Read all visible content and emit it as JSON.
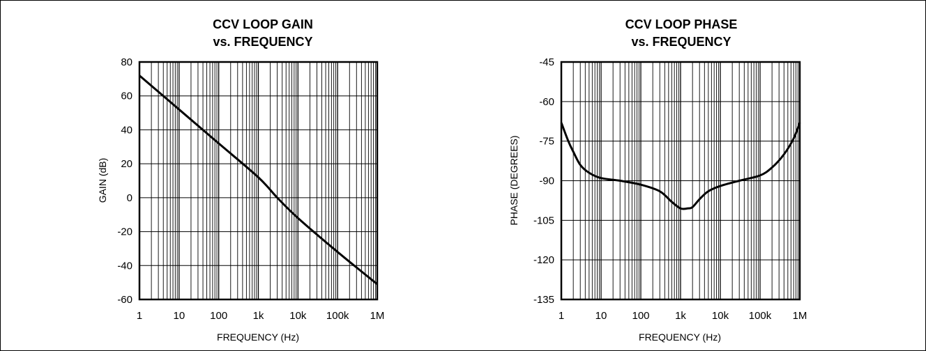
{
  "chart_data": [
    {
      "type": "line",
      "title": "CCV LOOP GAIN",
      "subtitle": "vs. FREQUENCY",
      "xlabel": "FREQUENCY (Hz)",
      "ylabel": "GAIN (dB)",
      "xscale": "log",
      "xlim": [
        1,
        1000000
      ],
      "ylim": [
        -60,
        80
      ],
      "xticks": [
        "1",
        "10",
        "100",
        "1k",
        "10k",
        "100k",
        "1M"
      ],
      "yticks": [
        "80",
        "60",
        "40",
        "20",
        "0",
        "-20",
        "-40",
        "-60"
      ],
      "grid": true,
      "series": [
        {
          "x": [
            1,
            10,
            100,
            1000,
            3000,
            10000,
            100000,
            1000000
          ],
          "y": [
            72,
            52,
            32,
            12,
            0,
            -12,
            -32,
            -51
          ]
        }
      ]
    },
    {
      "type": "line",
      "title": "CCV LOOP PHASE",
      "subtitle": "vs. FREQUENCY",
      "xlabel": "FREQUENCY (Hz)",
      "ylabel": "PHASE (DEGREES)",
      "xscale": "log",
      "xlim": [
        1,
        1000000
      ],
      "ylim": [
        -135,
        -45
      ],
      "xticks": [
        "1",
        "10",
        "100",
        "1k",
        "10k",
        "100k",
        "1M"
      ],
      "yticks": [
        "-45",
        "-60",
        "-75",
        "-90",
        "-105",
        "-120",
        "-135"
      ],
      "grid": true,
      "series": [
        {
          "x": [
            1,
            1.5,
            2,
            3,
            5,
            10,
            30,
            100,
            300,
            600,
            1000,
            1500,
            2000,
            3000,
            5000,
            10000,
            30000,
            100000,
            200000,
            400000,
            700000,
            1000000
          ],
          "y": [
            -68,
            -75,
            -79,
            -84,
            -87,
            -89,
            -90,
            -91.5,
            -94,
            -98,
            -100.5,
            -100.5,
            -100,
            -97,
            -94,
            -92,
            -90,
            -88,
            -85,
            -80,
            -74,
            -68
          ]
        }
      ]
    }
  ]
}
